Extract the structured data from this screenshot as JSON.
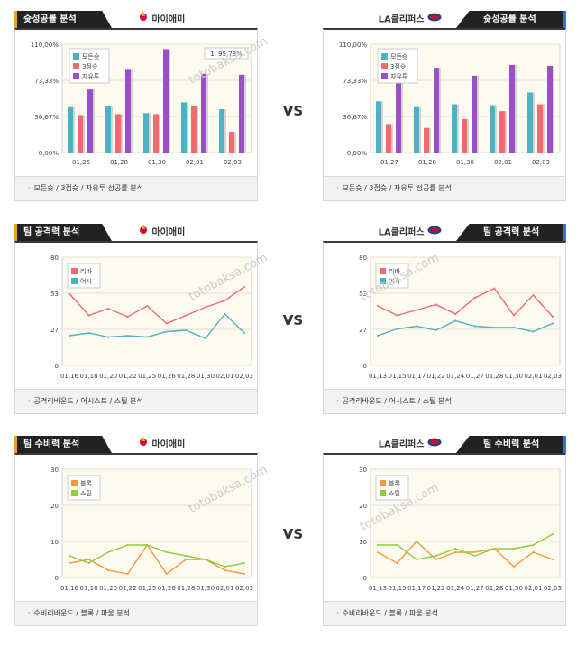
{
  "vs_label": "VS",
  "teams": {
    "left": "마이애미",
    "right": "LA클리퍼스"
  },
  "colors": {
    "bar_all": "#4fb1c6",
    "bar_3p": "#ef6b6e",
    "bar_ft": "#9a4fc9",
    "rebound": "#ef6b6e",
    "assist": "#4fb1c6",
    "block": "#f29a3a",
    "steal": "#8fcc3a",
    "header_accent_left": "#f0a020",
    "header_accent_right": "#3b6fd6"
  },
  "watermark": "토토박사 totobaksa.com",
  "sections": [
    {
      "title": "슛성공률 분석",
      "footer": "모든슛 / 3점슛 / 자유투 성공률 분석",
      "chart_data": [
        {
          "type": "bar",
          "team": "마이애미",
          "categories": [
            "01,26",
            "01,28",
            "01,30",
            "02,01",
            "02,03"
          ],
          "series": [
            {
              "name": "모든슛",
              "values": [
                46,
                47,
                40,
                51,
                44
              ]
            },
            {
              "name": "3점슛",
              "values": [
                38,
                39,
                39,
                47,
                21
              ]
            },
            {
              "name": "자유투",
              "values": [
                64,
                84,
                105,
                80,
                79
              ]
            }
          ],
          "yticks": [
            "110,00%",
            "73,33%",
            "36,67%",
            "0,00%"
          ],
          "ylim": [
            0,
            110
          ],
          "annotation": "1, 95,78%"
        },
        {
          "type": "bar",
          "team": "LA클리퍼스",
          "categories": [
            "01,27",
            "01,28",
            "01,30",
            "02,01",
            "02,03"
          ],
          "series": [
            {
              "name": "모든슛",
              "values": [
                52,
                46,
                49,
                48,
                61
              ]
            },
            {
              "name": "3점슛",
              "values": [
                29,
                25,
                34,
                42,
                49
              ]
            },
            {
              "name": "자유투",
              "values": [
                78,
                86,
                78,
                89,
                88
              ]
            }
          ],
          "yticks": [
            "110,00%",
            "73,33%",
            "36,67%",
            "0,00%"
          ],
          "ylim": [
            0,
            110
          ]
        }
      ]
    },
    {
      "title": "팀 공격력 분석",
      "footer": "공격리바운드 / 어시스트 / 스틸 분석",
      "chart_data": [
        {
          "type": "line",
          "team": "마이애미",
          "x": [
            "01,16",
            "01,18",
            "01,20",
            "01,22",
            "01,25",
            "01,26",
            "01,28",
            "01,30",
            "02,01",
            "02,03"
          ],
          "series": [
            {
              "name": "리바",
              "values": [
                53,
                37,
                42,
                36,
                44,
                31,
                37,
                43,
                48,
                58
              ]
            },
            {
              "name": "어시",
              "values": [
                22,
                24,
                21,
                22,
                21,
                25,
                26,
                20,
                38,
                24
              ]
            }
          ],
          "yticks": [
            "80",
            "53",
            "27",
            "0"
          ],
          "ylim": [
            0,
            80
          ]
        },
        {
          "type": "line",
          "team": "LA클리퍼스",
          "x": [
            "01,13",
            "01,15",
            "01,17",
            "01,22",
            "01,24",
            "01,27",
            "01,28",
            "01,30",
            "02,01",
            "02,03"
          ],
          "series": [
            {
              "name": "리바",
              "values": [
                44,
                37,
                41,
                45,
                38,
                50,
                57,
                37,
                52,
                36
              ]
            },
            {
              "name": "어시",
              "values": [
                22,
                27,
                29,
                26,
                33,
                29,
                28,
                28,
                25,
                31
              ]
            }
          ],
          "yticks": [
            "80",
            "53",
            "27",
            "0"
          ],
          "ylim": [
            0,
            80
          ]
        }
      ]
    },
    {
      "title": "팀 수비력 분석",
      "footer": "수비리바운드 / 블록 / 파울 분석",
      "chart_data": [
        {
          "type": "line",
          "team": "마이애미",
          "x": [
            "01,16",
            "01,18",
            "01,20",
            "01,22",
            "01,25",
            "01,26",
            "01,28",
            "01,30",
            "02,01",
            "02,03"
          ],
          "series": [
            {
              "name": "블록",
              "values": [
                4,
                5,
                2,
                1,
                9,
                1,
                5,
                5,
                2,
                1
              ]
            },
            {
              "name": "스틸",
              "values": [
                6,
                4,
                7,
                9,
                9,
                7,
                6,
                5,
                3,
                4
              ]
            }
          ],
          "yticks": [
            "30",
            "20",
            "10",
            "0"
          ],
          "ylim": [
            0,
            30
          ]
        },
        {
          "type": "line",
          "team": "LA클리퍼스",
          "x": [
            "01,13",
            "01,15",
            "01,17",
            "01,22",
            "01,24",
            "01,27",
            "01,28",
            "01,30",
            "02,01",
            "02,03"
          ],
          "series": [
            {
              "name": "블록",
              "values": [
                7,
                4,
                10,
                5,
                7,
                7,
                8,
                3,
                7,
                5
              ]
            },
            {
              "name": "스틸",
              "values": [
                9,
                9,
                5,
                6,
                8,
                6,
                8,
                8,
                9,
                12
              ]
            }
          ],
          "yticks": [
            "30",
            "20",
            "10",
            "0"
          ],
          "ylim": [
            0,
            30
          ]
        }
      ]
    }
  ]
}
